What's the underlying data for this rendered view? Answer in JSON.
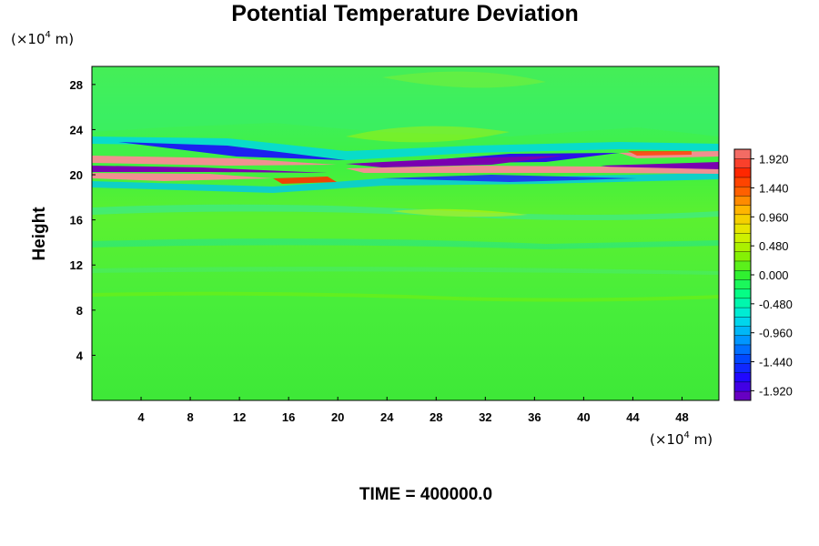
{
  "chart_data": {
    "type": "heatmap",
    "title": "Potential Temperature Deviation",
    "ylabel": "Height",
    "xlabel": "",
    "x_unit": {
      "prefix": "(×10",
      "exp": "4",
      "suffix": " m)"
    },
    "y_unit": {
      "prefix": "(×10",
      "exp": "4",
      "suffix": " m)"
    },
    "xlim": [
      0,
      51
    ],
    "ylim": [
      0,
      29.6
    ],
    "x_ticks": [
      "4",
      "8",
      "12",
      "16",
      "20",
      "24",
      "28",
      "32",
      "36",
      "40",
      "44",
      "48"
    ],
    "x_tick_values": [
      4,
      8,
      12,
      16,
      20,
      24,
      28,
      32,
      36,
      40,
      44,
      48
    ],
    "y_ticks": [
      "4",
      "8",
      "12",
      "16",
      "20",
      "24",
      "28"
    ],
    "y_tick_values": [
      4,
      8,
      12,
      16,
      20,
      24,
      28
    ],
    "colorbar": {
      "min": -2.08,
      "max": 2.08,
      "labels": [
        "1.920",
        "1.440",
        "0.960",
        "0.480",
        "0.000",
        "-0.480",
        "-0.960",
        "-1.440",
        "-1.920"
      ],
      "label_values": [
        1.92,
        1.44,
        0.96,
        0.48,
        0.0,
        -0.48,
        -0.96,
        -1.44,
        -1.92
      ],
      "colors": [
        "#7a00b0",
        "#2400ff",
        "#0048ff",
        "#00a0ff",
        "#00e6e6",
        "#00ff90",
        "#30f030",
        "#90f000",
        "#e0f000",
        "#ffc000",
        "#ff6000",
        "#ff2000",
        "#f08080"
      ]
    },
    "field_description_bands": [
      {
        "height_range": [
          20.3,
          21.8
        ],
        "value_range": [
          -2.0,
          2.0
        ]
      }
    ],
    "time_label": "TIME = 400000.0"
  }
}
